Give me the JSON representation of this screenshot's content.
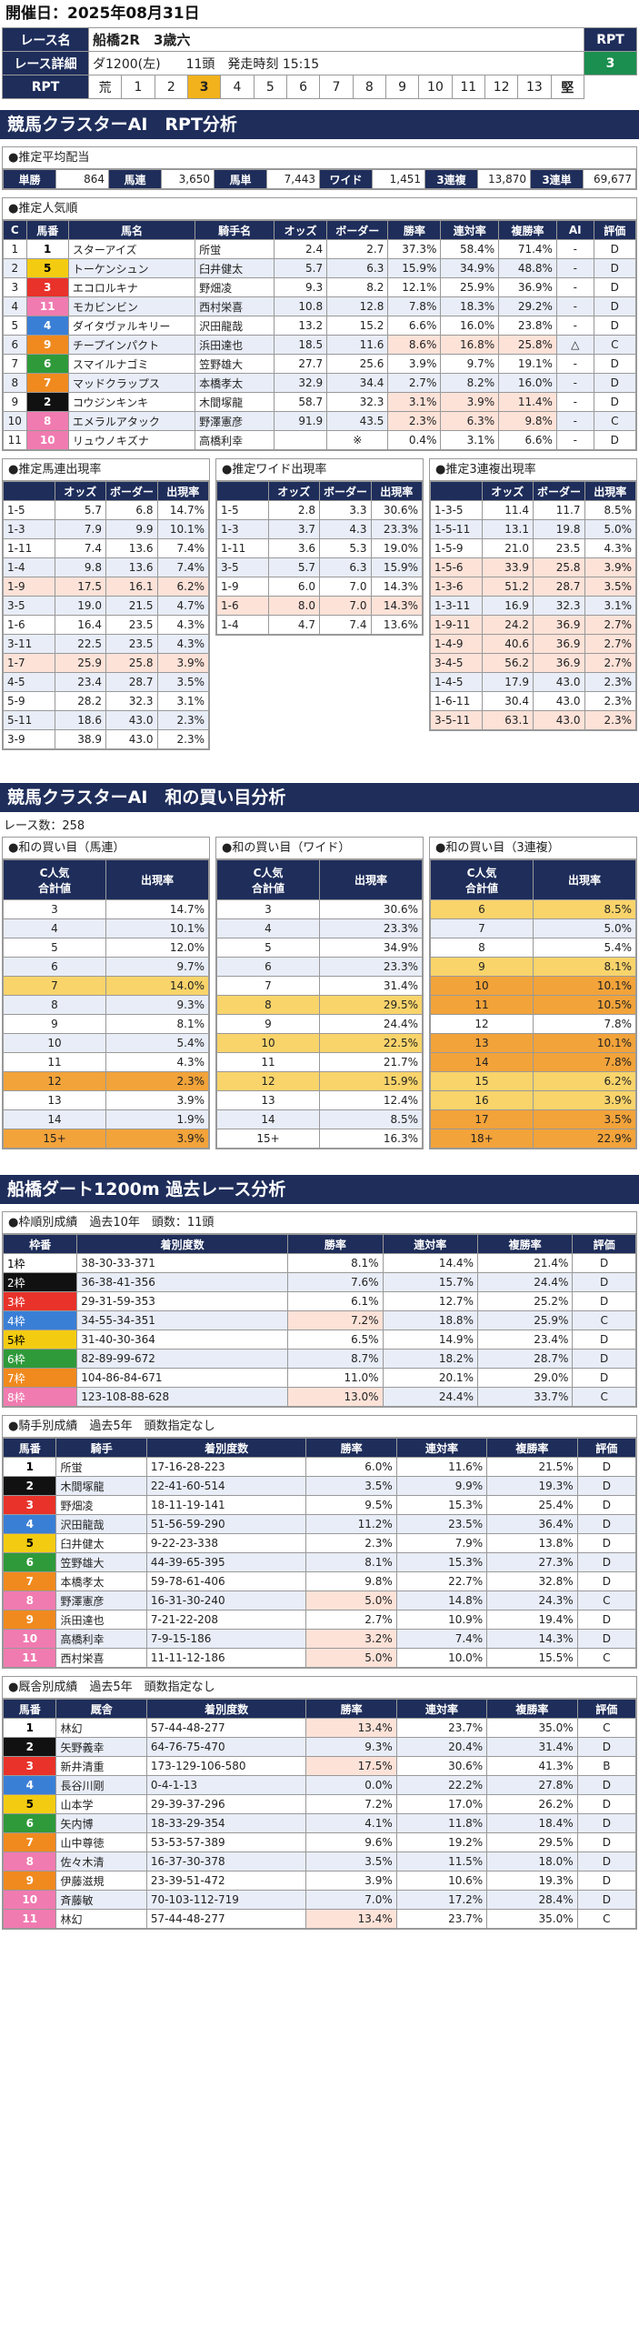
{
  "date_label": "開催日：2025年08月31日",
  "race": {
    "name_label": "レース名",
    "name": "船橋2R　3歳六",
    "detail_label": "レース詳細",
    "detail_course": "ダ1200(左)",
    "detail_heads": "11頭",
    "detail_time": "発走時刻 15:15",
    "rpt_label": "RPT",
    "rpt_value": "3",
    "rpt_row_label": "RPT",
    "rpt_left": "荒",
    "rpt_right": "堅",
    "rpt_nums": [
      "1",
      "2",
      "3",
      "4",
      "5",
      "6",
      "7",
      "8",
      "9",
      "10",
      "11",
      "12",
      "13"
    ],
    "rpt_active": "3"
  },
  "sec1_title": "競馬クラスターAI　RPT分析",
  "payout": {
    "title": "●推定平均配当",
    "items": [
      {
        "label": "単勝",
        "value": "864"
      },
      {
        "label": "馬連",
        "value": "3,650"
      },
      {
        "label": "馬単",
        "value": "7,443"
      },
      {
        "label": "ワイド",
        "value": "1,451"
      },
      {
        "label": "3連複",
        "value": "13,870"
      },
      {
        "label": "3連単",
        "value": "69,677"
      }
    ]
  },
  "pop": {
    "title": "●推定人気順",
    "headers": [
      "C",
      "馬番",
      "馬名",
      "騎手名",
      "オッズ",
      "ボーダー",
      "勝率",
      "連対率",
      "複勝率",
      "AI",
      "評価"
    ],
    "rows": [
      [
        "1",
        "1",
        "スターアイズ",
        "所蛍",
        "2.4",
        "2.7",
        "37.3%",
        "58.4%",
        "71.4%",
        "-",
        "D"
      ],
      [
        "2",
        "5",
        "トーケンシュン",
        "臼井健太",
        "5.7",
        "6.3",
        "15.9%",
        "34.9%",
        "48.8%",
        "-",
        "D"
      ],
      [
        "3",
        "3",
        "エコロルキナ",
        "野畑凌",
        "9.3",
        "8.2",
        "12.1%",
        "25.9%",
        "36.9%",
        "-",
        "D"
      ],
      [
        "4",
        "11",
        "モカビンビン",
        "西村栄喜",
        "10.8",
        "12.8",
        "7.8%",
        "18.3%",
        "29.2%",
        "-",
        "D"
      ],
      [
        "5",
        "4",
        "ダイタヴァルキリー",
        "沢田龍哉",
        "13.2",
        "15.2",
        "6.6%",
        "16.0%",
        "23.8%",
        "-",
        "D"
      ],
      [
        "6",
        "9",
        "チープインパクト",
        "浜田達也",
        "18.5",
        "11.6",
        "8.6%",
        "16.8%",
        "25.8%",
        "△",
        "C"
      ],
      [
        "7",
        "6",
        "スマイルナゴミ",
        "笠野雄大",
        "27.7",
        "25.6",
        "3.9%",
        "9.7%",
        "19.1%",
        "-",
        "D"
      ],
      [
        "8",
        "7",
        "マッドクラップス",
        "本橋孝太",
        "32.9",
        "34.4",
        "2.7%",
        "8.2%",
        "16.0%",
        "-",
        "D"
      ],
      [
        "9",
        "2",
        "コウジンキンキ",
        "木間塚龍",
        "58.7",
        "32.3",
        "3.1%",
        "3.9%",
        "11.4%",
        "-",
        "D"
      ],
      [
        "10",
        "8",
        "エメラルアタック",
        "野澤憲彦",
        "91.9",
        "43.5",
        "2.3%",
        "6.3%",
        "9.8%",
        "-",
        "C"
      ],
      [
        "11",
        "10",
        "リュウノキズナ",
        "高橋利幸",
        "",
        "※",
        "0.4%",
        "3.1%",
        "6.6%",
        "-",
        "D"
      ]
    ]
  },
  "umaren": {
    "title": "●推定馬連出現率",
    "headers": [
      "",
      "オッズ",
      "ボーダー",
      "出現率"
    ],
    "rows": [
      [
        "1-5",
        "5.7",
        "6.8",
        "14.7%"
      ],
      [
        "1-3",
        "7.9",
        "9.9",
        "10.1%"
      ],
      [
        "1-11",
        "7.4",
        "13.6",
        "7.4%"
      ],
      [
        "1-4",
        "9.8",
        "13.6",
        "7.4%"
      ],
      [
        "1-9",
        "17.5",
        "16.1",
        "6.2%"
      ],
      [
        "3-5",
        "19.0",
        "21.5",
        "4.7%"
      ],
      [
        "1-6",
        "16.4",
        "23.5",
        "4.3%"
      ],
      [
        "3-11",
        "22.5",
        "23.5",
        "4.3%"
      ],
      [
        "1-7",
        "25.9",
        "25.8",
        "3.9%"
      ],
      [
        "4-5",
        "23.4",
        "28.7",
        "3.5%"
      ],
      [
        "5-9",
        "28.2",
        "32.3",
        "3.1%"
      ],
      [
        "5-11",
        "18.6",
        "43.0",
        "2.3%"
      ],
      [
        "3-9",
        "38.9",
        "43.0",
        "2.3%"
      ]
    ]
  },
  "wide": {
    "title": "●推定ワイド出現率",
    "headers": [
      "",
      "オッズ",
      "ボーダー",
      "出現率"
    ],
    "rows": [
      [
        "1-5",
        "2.8",
        "3.3",
        "30.6%"
      ],
      [
        "1-3",
        "3.7",
        "4.3",
        "23.3%"
      ],
      [
        "1-11",
        "3.6",
        "5.3",
        "19.0%"
      ],
      [
        "3-5",
        "5.7",
        "6.3",
        "15.9%"
      ],
      [
        "1-9",
        "6.0",
        "7.0",
        "14.3%"
      ],
      [
        "1-6",
        "8.0",
        "7.0",
        "14.3%"
      ],
      [
        "1-4",
        "4.7",
        "7.4",
        "13.6%"
      ]
    ]
  },
  "trio": {
    "title": "●推定3連複出現率",
    "headers": [
      "",
      "オッズ",
      "ボーダー",
      "出現率"
    ],
    "rows": [
      [
        "1-3-5",
        "11.4",
        "11.7",
        "8.5%"
      ],
      [
        "1-5-11",
        "13.1",
        "19.8",
        "5.0%"
      ],
      [
        "1-5-9",
        "21.0",
        "23.5",
        "4.3%"
      ],
      [
        "1-5-6",
        "33.9",
        "25.8",
        "3.9%"
      ],
      [
        "1-3-6",
        "51.2",
        "28.7",
        "3.5%"
      ],
      [
        "1-3-11",
        "16.9",
        "32.3",
        "3.1%"
      ],
      [
        "1-9-11",
        "24.2",
        "36.9",
        "2.7%"
      ],
      [
        "1-4-9",
        "40.6",
        "36.9",
        "2.7%"
      ],
      [
        "3-4-5",
        "56.2",
        "36.9",
        "2.7%"
      ],
      [
        "1-4-5",
        "17.9",
        "43.0",
        "2.3%"
      ],
      [
        "1-6-11",
        "30.4",
        "43.0",
        "2.3%"
      ],
      [
        "3-5-11",
        "63.1",
        "43.0",
        "2.3%"
      ]
    ]
  },
  "sec2_title": "競馬クラスターAI　和の買い目分析",
  "race_count": "レース数：258",
  "wa_umaren": {
    "title": "●和の買い目（馬連）",
    "h1": "C人気",
    "h2": "合計値",
    "h3": "出現率",
    "rows": [
      [
        "3",
        "14.7%"
      ],
      [
        "4",
        "10.1%"
      ],
      [
        "5",
        "12.0%"
      ],
      [
        "6",
        "9.7%"
      ],
      [
        "7",
        "14.0%"
      ],
      [
        "8",
        "9.3%"
      ],
      [
        "9",
        "8.1%"
      ],
      [
        "10",
        "5.4%"
      ],
      [
        "11",
        "4.3%"
      ],
      [
        "12",
        "2.3%"
      ],
      [
        "13",
        "3.9%"
      ],
      [
        "14",
        "1.9%"
      ],
      [
        "15+",
        "3.9%"
      ]
    ]
  },
  "wa_wide": {
    "title": "●和の買い目（ワイド）",
    "h1": "C人気",
    "h2": "合計値",
    "h3": "出現率",
    "rows": [
      [
        "3",
        "30.6%"
      ],
      [
        "4",
        "23.3%"
      ],
      [
        "5",
        "34.9%"
      ],
      [
        "6",
        "23.3%"
      ],
      [
        "7",
        "31.4%"
      ],
      [
        "8",
        "29.5%"
      ],
      [
        "9",
        "24.4%"
      ],
      [
        "10",
        "22.5%"
      ],
      [
        "11",
        "21.7%"
      ],
      [
        "12",
        "15.9%"
      ],
      [
        "13",
        "12.4%"
      ],
      [
        "14",
        "8.5%"
      ],
      [
        "15+",
        "16.3%"
      ]
    ]
  },
  "wa_trio": {
    "title": "●和の買い目（3連複）",
    "h1": "C人気",
    "h2": "合計値",
    "h3": "出現率",
    "rows": [
      [
        "6",
        "8.5%"
      ],
      [
        "7",
        "5.0%"
      ],
      [
        "8",
        "5.4%"
      ],
      [
        "9",
        "8.1%"
      ],
      [
        "10",
        "10.1%"
      ],
      [
        "11",
        "10.5%"
      ],
      [
        "12",
        "7.8%"
      ],
      [
        "13",
        "10.1%"
      ],
      [
        "14",
        "7.8%"
      ],
      [
        "15",
        "6.2%"
      ],
      [
        "16",
        "3.9%"
      ],
      [
        "17",
        "3.5%"
      ],
      [
        "18+",
        "22.9%"
      ]
    ]
  },
  "sec3_title": "船橋ダート1200m 過去レース分析",
  "waku": {
    "title": "●枠順別成績　過去10年　頭数：11頭",
    "headers": [
      "枠番",
      "着別度数",
      "勝率",
      "連対率",
      "複勝率",
      "評価"
    ],
    "rows": [
      [
        "1枠",
        "38-30-33-371",
        "8.1%",
        "14.4%",
        "21.4%",
        "D"
      ],
      [
        "2枠",
        "36-38-41-356",
        "7.6%",
        "15.7%",
        "24.4%",
        "D"
      ],
      [
        "3枠",
        "29-31-59-353",
        "6.1%",
        "12.7%",
        "25.2%",
        "D"
      ],
      [
        "4枠",
        "34-55-34-351",
        "7.2%",
        "18.8%",
        "25.9%",
        "C"
      ],
      [
        "5枠",
        "31-40-30-364",
        "6.5%",
        "14.9%",
        "23.4%",
        "D"
      ],
      [
        "6枠",
        "82-89-99-672",
        "8.7%",
        "18.2%",
        "28.7%",
        "D"
      ],
      [
        "7枠",
        "104-86-84-671",
        "11.0%",
        "20.1%",
        "29.0%",
        "D"
      ],
      [
        "8枠",
        "123-108-88-628",
        "13.0%",
        "24.4%",
        "33.7%",
        "C"
      ]
    ]
  },
  "jockey": {
    "title": "●騎手別成績　過去5年　頭数指定なし",
    "headers": [
      "馬番",
      "騎手",
      "着別度数",
      "勝率",
      "連対率",
      "複勝率",
      "評価"
    ],
    "rows": [
      [
        "1",
        "所蛍",
        "17-16-28-223",
        "6.0%",
        "11.6%",
        "21.5%",
        "D"
      ],
      [
        "2",
        "木間塚龍",
        "22-41-60-514",
        "3.5%",
        "9.9%",
        "19.3%",
        "D"
      ],
      [
        "3",
        "野畑凌",
        "18-11-19-141",
        "9.5%",
        "15.3%",
        "25.4%",
        "D"
      ],
      [
        "4",
        "沢田龍哉",
        "51-56-59-290",
        "11.2%",
        "23.5%",
        "36.4%",
        "D"
      ],
      [
        "5",
        "臼井健太",
        "9-22-23-338",
        "2.3%",
        "7.9%",
        "13.8%",
        "D"
      ],
      [
        "6",
        "笠野雄大",
        "44-39-65-395",
        "8.1%",
        "15.3%",
        "27.3%",
        "D"
      ],
      [
        "7",
        "本橋孝太",
        "59-78-61-406",
        "9.8%",
        "22.7%",
        "32.8%",
        "D"
      ],
      [
        "8",
        "野澤憲彦",
        "16-31-30-240",
        "5.0%",
        "14.8%",
        "24.3%",
        "C"
      ],
      [
        "9",
        "浜田達也",
        "7-21-22-208",
        "2.7%",
        "10.9%",
        "19.4%",
        "D"
      ],
      [
        "10",
        "高橋利幸",
        "7-9-15-186",
        "3.2%",
        "7.4%",
        "14.3%",
        "D"
      ],
      [
        "11",
        "西村栄喜",
        "11-11-12-186",
        "5.0%",
        "10.0%",
        "15.5%",
        "C"
      ]
    ]
  },
  "trainer": {
    "title": "●厩舎別成績　過去5年　頭数指定なし",
    "headers": [
      "馬番",
      "厩舎",
      "着別度数",
      "勝率",
      "連対率",
      "複勝率",
      "評価"
    ],
    "rows": [
      [
        "1",
        "林幻",
        "57-44-48-277",
        "13.4%",
        "23.7%",
        "35.0%",
        "C"
      ],
      [
        "2",
        "矢野義幸",
        "64-76-75-470",
        "9.3%",
        "20.4%",
        "31.4%",
        "D"
      ],
      [
        "3",
        "新井清重",
        "173-129-106-580",
        "17.5%",
        "30.6%",
        "41.3%",
        "B"
      ],
      [
        "4",
        "長谷川剛",
        "0-4-1-13",
        "0.0%",
        "22.2%",
        "27.8%",
        "D"
      ],
      [
        "5",
        "山本学",
        "29-39-37-296",
        "7.2%",
        "17.0%",
        "26.2%",
        "D"
      ],
      [
        "6",
        "矢内博",
        "18-33-29-354",
        "4.1%",
        "11.8%",
        "18.4%",
        "D"
      ],
      [
        "7",
        "山中尊徳",
        "53-53-57-389",
        "9.6%",
        "19.2%",
        "29.5%",
        "D"
      ],
      [
        "8",
        "佐々木清",
        "16-37-30-378",
        "3.5%",
        "11.5%",
        "18.0%",
        "D"
      ],
      [
        "9",
        "伊藤滋規",
        "23-39-51-472",
        "3.9%",
        "10.6%",
        "19.3%",
        "D"
      ],
      [
        "10",
        "斉藤敏",
        "70-103-112-719",
        "7.0%",
        "17.2%",
        "28.4%",
        "D"
      ],
      [
        "11",
        "林幻",
        "57-44-48-277",
        "13.4%",
        "23.7%",
        "35.0%",
        "C"
      ]
    ]
  },
  "colors": {
    "navy": "#1e2d5a",
    "rpt_green": "#1a8f4f",
    "rpt_active": "#f2b21c",
    "highlight": "#fde2d8"
  },
  "frame_colors": {
    "1": [
      "#ffffff",
      "#000000"
    ],
    "2": [
      "#111111",
      "#ffffff"
    ],
    "3": [
      "#e8322a",
      "#ffffff"
    ],
    "4": [
      "#3a7fd6",
      "#ffffff"
    ],
    "5": [
      "#f3cc12",
      "#000000"
    ],
    "6": [
      "#2f9a3a",
      "#ffffff"
    ],
    "7": [
      "#f08a1e",
      "#ffffff"
    ],
    "8": [
      "#f07bb0",
      "#ffffff"
    ]
  }
}
